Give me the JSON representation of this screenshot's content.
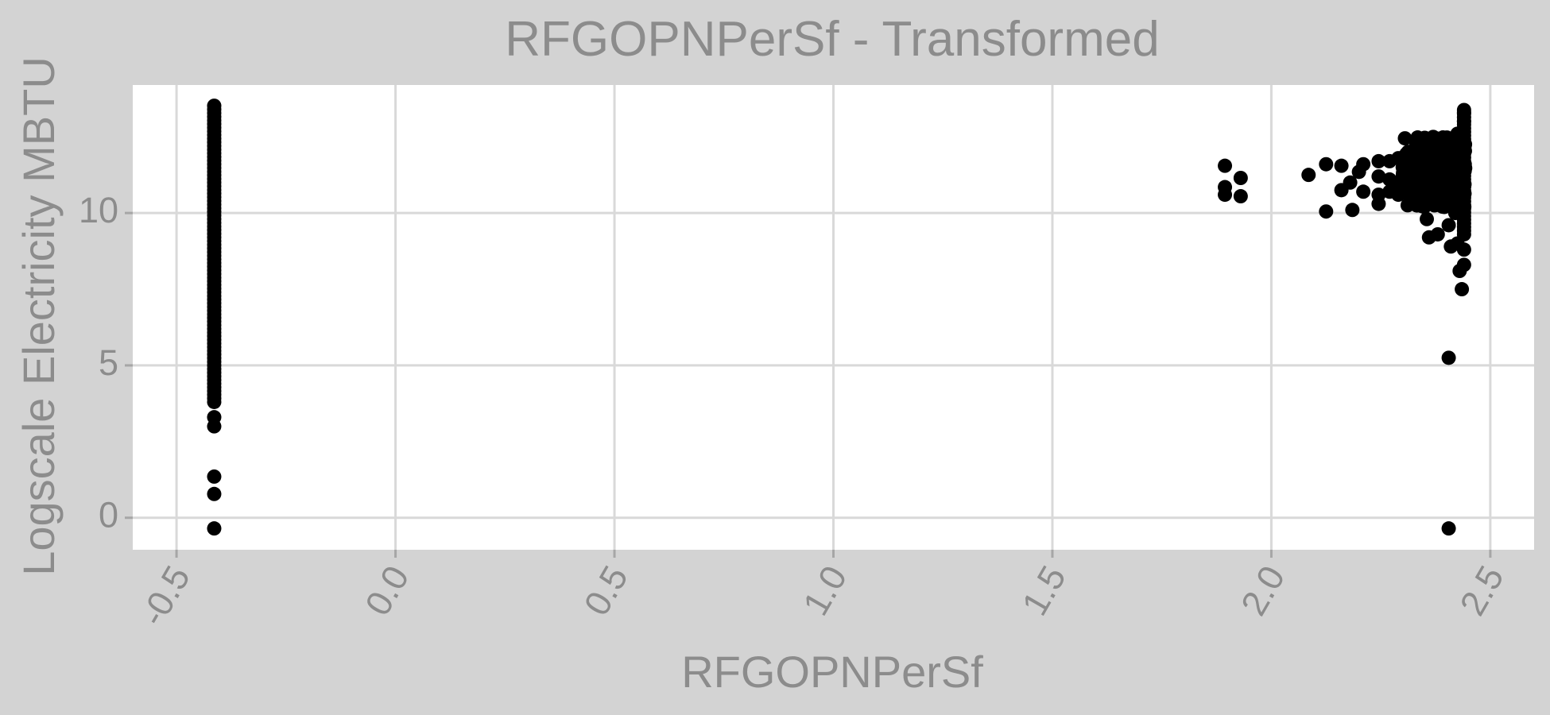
{
  "chart_data": {
    "type": "scatter",
    "title": "RFGOPNPerSf - Transformed",
    "xlabel": "RFGOPNPerSf",
    "ylabel": "Logscale Electricity MBTU",
    "xlim": [
      -0.6,
      2.6
    ],
    "ylim": [
      -1.05,
      14.2
    ],
    "x_ticks": [
      -0.5,
      0.0,
      0.5,
      1.0,
      1.5,
      2.0,
      2.5
    ],
    "x_tick_labels": [
      "-0.5",
      "0.0",
      "0.5",
      "1.0",
      "1.5",
      "2.0",
      "2.5"
    ],
    "y_ticks": [
      0,
      5,
      10
    ],
    "y_tick_labels": [
      "0",
      "5",
      "10"
    ],
    "grid": true,
    "point_color": "#000000",
    "panel_color": "#ffffff",
    "background_color": "#d3d3d3",
    "gridline_color": "#d9d9d9",
    "text_color": "#8c8c8c",
    "x_tick_rotation_deg": -60,
    "series": [
      {
        "segments": [
          {
            "x": -0.414,
            "y_from": 3.8,
            "y_to": 13.6,
            "y_step": 0.12
          }
        ],
        "points": [
          [
            -0.414,
            3.3
          ],
          [
            -0.414,
            3.0
          ],
          [
            -0.414,
            1.35
          ],
          [
            -0.414,
            0.78
          ],
          [
            -0.414,
            -0.35
          ],
          [
            1.894,
            11.55
          ],
          [
            1.894,
            10.85
          ],
          [
            1.894,
            10.6
          ],
          [
            1.93,
            11.15
          ],
          [
            1.93,
            10.55
          ],
          [
            2.085,
            11.25
          ],
          [
            2.125,
            11.6
          ],
          [
            2.125,
            10.05
          ],
          [
            2.16,
            11.55
          ],
          [
            2.16,
            10.75
          ],
          [
            2.18,
            11.0
          ],
          [
            2.185,
            10.1
          ],
          [
            2.2,
            11.35
          ],
          [
            2.21,
            11.6
          ],
          [
            2.21,
            10.7
          ],
          [
            2.245,
            11.7
          ],
          [
            2.245,
            11.2
          ],
          [
            2.245,
            10.6
          ],
          [
            2.245,
            10.3
          ],
          [
            2.27,
            11.7
          ],
          [
            2.27,
            11.1
          ],
          [
            2.27,
            10.7
          ],
          [
            2.29,
            11.8
          ],
          [
            2.29,
            11.0
          ],
          [
            2.29,
            10.6
          ],
          [
            2.3,
            11.5
          ],
          [
            2.31,
            11.8
          ],
          [
            2.31,
            10.9
          ],
          [
            2.32,
            11.6
          ],
          [
            2.33,
            11.7
          ],
          [
            2.34,
            11.2
          ],
          [
            2.35,
            12.1
          ],
          [
            2.35,
            10.7
          ],
          [
            2.355,
            9.8
          ],
          [
            2.36,
            9.2
          ],
          [
            2.37,
            11.8
          ],
          [
            2.38,
            12.2
          ],
          [
            2.38,
            9.3
          ],
          [
            2.39,
            12.0
          ],
          [
            2.395,
            10.2
          ],
          [
            2.4,
            12.3
          ],
          [
            2.405,
            9.6
          ],
          [
            2.41,
            8.9
          ],
          [
            2.415,
            11.5
          ],
          [
            2.42,
            10.0
          ],
          [
            2.425,
            9.0
          ],
          [
            2.425,
            12.6
          ],
          [
            2.43,
            8.1
          ],
          [
            2.44,
            8.3
          ],
          [
            2.435,
            7.5
          ],
          [
            2.44,
            8.8
          ],
          [
            2.44,
            13.3
          ],
          [
            2.44,
            13.0
          ],
          [
            2.405,
            5.25
          ],
          [
            2.405,
            -0.35
          ]
        ],
        "dense_band": {
          "x_from": 2.3,
          "x_to": 2.445,
          "y_from": 10.2,
          "y_to": 12.5
        },
        "right_column": {
          "x": 2.44,
          "y_from": 9.3,
          "y_to": 13.4
        }
      }
    ]
  }
}
